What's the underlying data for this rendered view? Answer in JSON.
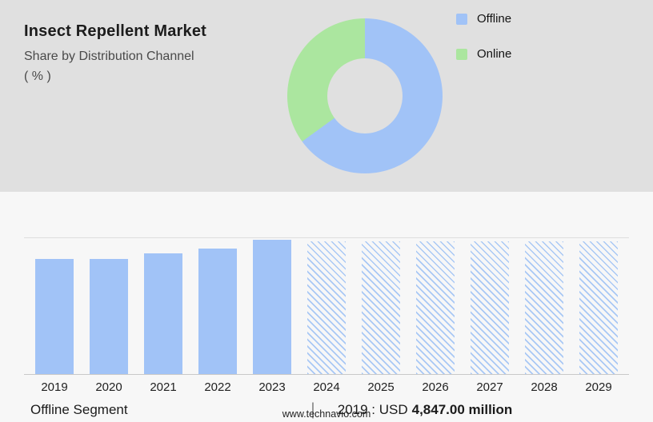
{
  "header": {
    "title": "Insect Repellent Market",
    "subtitle": "Share by Distribution Channel",
    "unit": "( % )"
  },
  "chart_data": [
    {
      "type": "pie",
      "title": "Share by Distribution Channel ( % )",
      "labels": [
        "Offline",
        "Online"
      ],
      "values": [
        65,
        35
      ],
      "colors": [
        "#a1c3f7",
        "#abe69f"
      ],
      "donut": true,
      "legend_position": "right"
    },
    {
      "type": "bar",
      "title": "Offline Segment",
      "categories": [
        "2019",
        "2020",
        "2021",
        "2022",
        "2023",
        "2024",
        "2025",
        "2026",
        "2027",
        "2028",
        "2029"
      ],
      "values": [
        4847,
        4815,
        5060,
        5260,
        5620,
        5560,
        5560,
        5560,
        5560,
        5560,
        5560
      ],
      "values_note": "only 2019 labeled on chart (USD 4,847.00 million); other values estimated from bar heights",
      "unit": "USD million",
      "forecast_from": "2024",
      "bar_color": "#a1c3f7",
      "forecast_style": "diagonal-hatch",
      "xlabel": "",
      "ylabel": "",
      "ylim": [
        0,
        5700
      ],
      "grid": "top and baseline lines only",
      "annotation": "2019 : USD 4,847.00 million"
    }
  ],
  "footer": {
    "segment_label": "Offline Segment",
    "separator": "|",
    "value_prefix": "2019 : USD",
    "value_bold": "4,847.00 million",
    "website": "www.technavio.com"
  }
}
